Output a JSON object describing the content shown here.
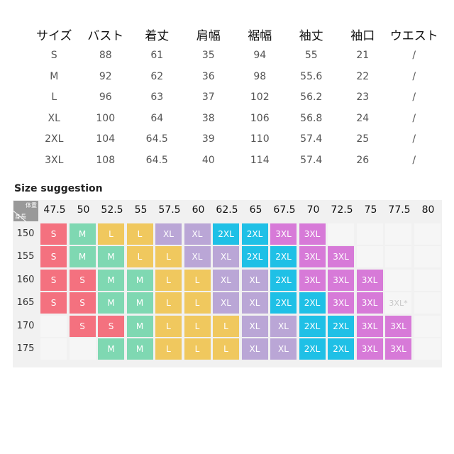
{
  "spec_table": {
    "headers": [
      "サイズ",
      "バスト",
      "着丈",
      "肩幅",
      "裾幅",
      "袖丈",
      "袖口",
      "ウエスト"
    ],
    "rows": [
      [
        "S",
        "88",
        "61",
        "35",
        "94",
        "55",
        "21",
        "/"
      ],
      [
        "M",
        "92",
        "62",
        "36",
        "98",
        "55.6",
        "22",
        "/"
      ],
      [
        "L",
        "96",
        "63",
        "37",
        "102",
        "56.2",
        "23",
        "/"
      ],
      [
        "XL",
        "100",
        "64",
        "38",
        "106",
        "56.8",
        "24",
        "/"
      ],
      [
        "2XL",
        "104",
        "64.5",
        "39",
        "110",
        "57.4",
        "25",
        "/"
      ],
      [
        "3XL",
        "108",
        "64.5",
        "40",
        "114",
        "57.4",
        "26",
        "/"
      ]
    ]
  },
  "suggestion": {
    "title": "Size suggestion",
    "corner_weight": "体重",
    "corner_height": "身長",
    "weights": [
      "47.5",
      "50",
      "52.5",
      "55",
      "57.5",
      "60",
      "62.5",
      "65",
      "67.5",
      "70",
      "72.5",
      "75",
      "77.5",
      "80"
    ],
    "rows": [
      {
        "height": "150",
        "sizes": [
          "S",
          "M",
          "L",
          "L",
          "XL",
          "XL",
          "2XL",
          "2XL",
          "3XL",
          "3XL",
          "",
          "",
          "",
          ""
        ]
      },
      {
        "height": "155",
        "sizes": [
          "S",
          "M",
          "M",
          "L",
          "L",
          "XL",
          "XL",
          "2XL",
          "2XL",
          "3XL",
          "3XL",
          "",
          "",
          ""
        ]
      },
      {
        "height": "160",
        "sizes": [
          "S",
          "S",
          "M",
          "M",
          "L",
          "L",
          "XL",
          "XL",
          "2XL",
          "3XL",
          "3XL",
          "3XL",
          "",
          ""
        ]
      },
      {
        "height": "165",
        "sizes": [
          "S",
          "S",
          "M",
          "M",
          "L",
          "L",
          "XL",
          "XL",
          "2XL",
          "2XL",
          "3XL",
          "3XL",
          "3XL*",
          ""
        ]
      },
      {
        "height": "170",
        "sizes": [
          "",
          "S",
          "S",
          "M",
          "L",
          "L",
          "L",
          "XL",
          "XL",
          "2XL",
          "2XL",
          "3XL",
          "3XL",
          ""
        ]
      },
      {
        "height": "175",
        "sizes": [
          "",
          "",
          "M",
          "M",
          "L",
          "L",
          "L",
          "XL",
          "XL",
          "2XL",
          "2XL",
          "3XL",
          "3XL",
          ""
        ]
      }
    ],
    "colors": {
      "S": "#f4717f",
      "M": "#7fd8b2",
      "L": "#f0c85e",
      "XL": "#baa6d6",
      "2XL": "#1fc0e6",
      "3XL": "#d77ad8"
    }
  }
}
